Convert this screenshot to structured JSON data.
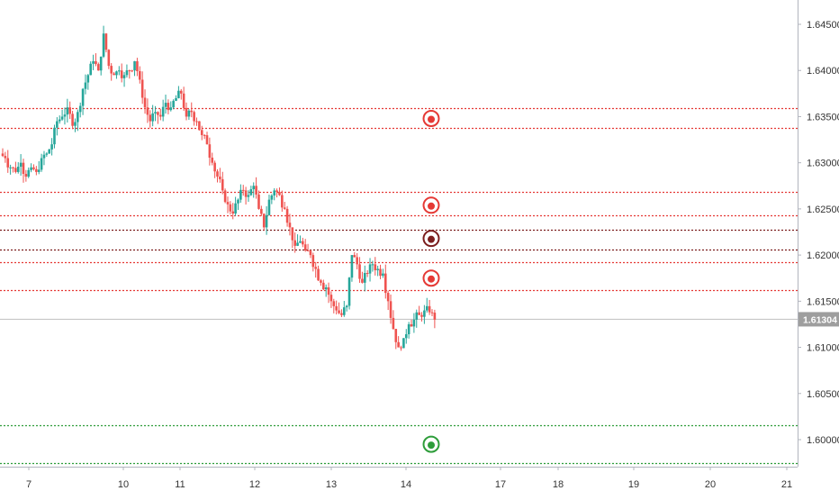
{
  "chart_data": {
    "type": "candlestick",
    "y_axis_ticks": [
      "1.64500",
      "1.64000",
      "1.63500",
      "1.63000",
      "1.62500",
      "1.62000",
      "1.61500",
      "1.61000",
      "1.60500",
      "1.60000"
    ],
    "x_axis_ticks": [
      "7",
      "10",
      "11",
      "12",
      "13",
      "14",
      "17",
      "18",
      "19",
      "20",
      "21"
    ],
    "ylim": [
      1.5965,
      1.6482
    ],
    "last_price": 1.61304,
    "last_price_label": "1.61304",
    "colors": {
      "up": "#26a69a",
      "down": "#ef5350",
      "resistance": "#e53935",
      "strong_level": "#7b1e1e",
      "support": "#2e9d3a",
      "price_line": "#c0c0c0"
    },
    "levels": [
      {
        "price": 1.6359,
        "kind": "resistance",
        "marker": true
      },
      {
        "price": 1.6338,
        "kind": "resistance",
        "marker": false
      },
      {
        "price": 1.6268,
        "kind": "resistance",
        "marker": true
      },
      {
        "price": 1.6243,
        "kind": "resistance",
        "marker": false
      },
      {
        "price": 1.6227,
        "kind": "strong_level",
        "marker": true
      },
      {
        "price": 1.6206,
        "kind": "strong_level",
        "marker": false
      },
      {
        "price": 1.6192,
        "kind": "resistance",
        "marker": false
      },
      {
        "price": 1.6162,
        "kind": "resistance",
        "marker": true
      },
      {
        "price": 1.6016,
        "kind": "support",
        "marker": true
      },
      {
        "price": 1.5975,
        "kind": "support",
        "marker": false
      }
    ],
    "candles_close": [
      1.6305,
      1.6295,
      1.629,
      1.63,
      1.6285,
      1.6295,
      1.629,
      1.6305,
      1.631,
      1.632,
      1.6345,
      1.635,
      1.636,
      1.634,
      1.6355,
      1.638,
      1.6395,
      1.641,
      1.64,
      1.644,
      1.6405,
      1.6395,
      1.64,
      1.6395,
      1.64,
      1.641,
      1.639,
      1.636,
      1.6345,
      1.6355,
      1.635,
      1.6365,
      1.636,
      1.637,
      1.6375,
      1.635,
      1.6355,
      1.6345,
      1.633,
      1.632,
      1.63,
      1.6285,
      1.627,
      1.6255,
      1.6245,
      1.626,
      1.627,
      1.6265,
      1.6275,
      1.625,
      1.623,
      1.626,
      1.627,
      1.6265,
      1.625,
      1.623,
      1.621,
      1.6215,
      1.6205,
      1.62,
      1.6185,
      1.617,
      1.6165,
      1.615,
      1.614,
      1.6135,
      1.6145,
      1.62,
      1.619,
      1.617,
      1.618,
      1.619,
      1.6185,
      1.618,
      1.615,
      1.612,
      1.61,
      1.611,
      1.6125,
      1.613,
      1.6135,
      1.614,
      1.6138,
      1.613
    ],
    "candles_open_first": 1.631
  }
}
